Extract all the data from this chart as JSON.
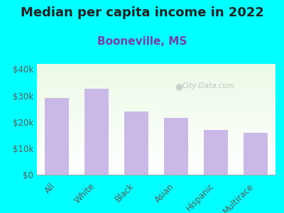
{
  "title": "Median per capita income in 2022",
  "subtitle": "Booneville, MS",
  "categories": [
    "All",
    "White",
    "Black",
    "Asian",
    "Hispanic",
    "Multirace"
  ],
  "values": [
    29000,
    32500,
    24000,
    21500,
    17000,
    16000
  ],
  "bar_color": "#c9b8e8",
  "background_outer": "#00ffff",
  "title_fontsize": 13,
  "subtitle_fontsize": 11,
  "title_color": "#222222",
  "subtitle_color": "#7a3fa0",
  "tick_label_color": "#5a5a5a",
  "ylim": [
    0,
    42000
  ],
  "yticks": [
    0,
    10000,
    20000,
    30000,
    40000
  ],
  "watermark": "City-Data.com"
}
